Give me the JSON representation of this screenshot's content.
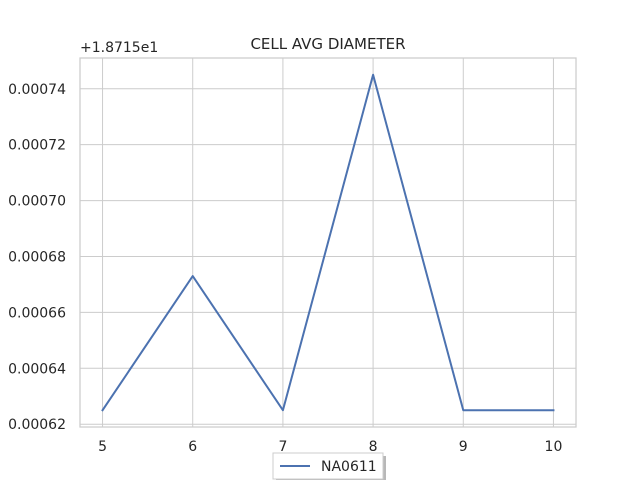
{
  "chart_data": {
    "type": "line",
    "title": "CELL AVG  DIAMETER",
    "xlabel": "",
    "ylabel": "",
    "offset_text": "+1.8715e1",
    "x": [
      5,
      6,
      7,
      8,
      9,
      10
    ],
    "series": [
      {
        "name": "NA0611",
        "color": "#4c72b0",
        "values": [
          0.000625,
          0.000673,
          0.000625,
          0.000745,
          0.000625,
          0.000625
        ]
      }
    ],
    "xlim": [
      4.75,
      10.25
    ],
    "ylim": [
      0.000619,
      0.000751
    ],
    "x_ticks": [
      5,
      6,
      7,
      8,
      9,
      10
    ],
    "x_tick_labels": [
      "5",
      "6",
      "7",
      "8",
      "9",
      "10"
    ],
    "y_ticks": [
      0.00062,
      0.00064,
      0.00066,
      0.00068,
      0.0007,
      0.00072,
      0.00074
    ],
    "y_tick_labels": [
      "0.00062",
      "0.00064",
      "0.00066",
      "0.00068",
      "0.00070",
      "0.00072",
      "0.00074"
    ],
    "grid": true,
    "legend_position": "bottom-center",
    "colors": {
      "grid": "#cccccc",
      "axes_edge": "#cccccc",
      "background": "#ffffff"
    }
  }
}
